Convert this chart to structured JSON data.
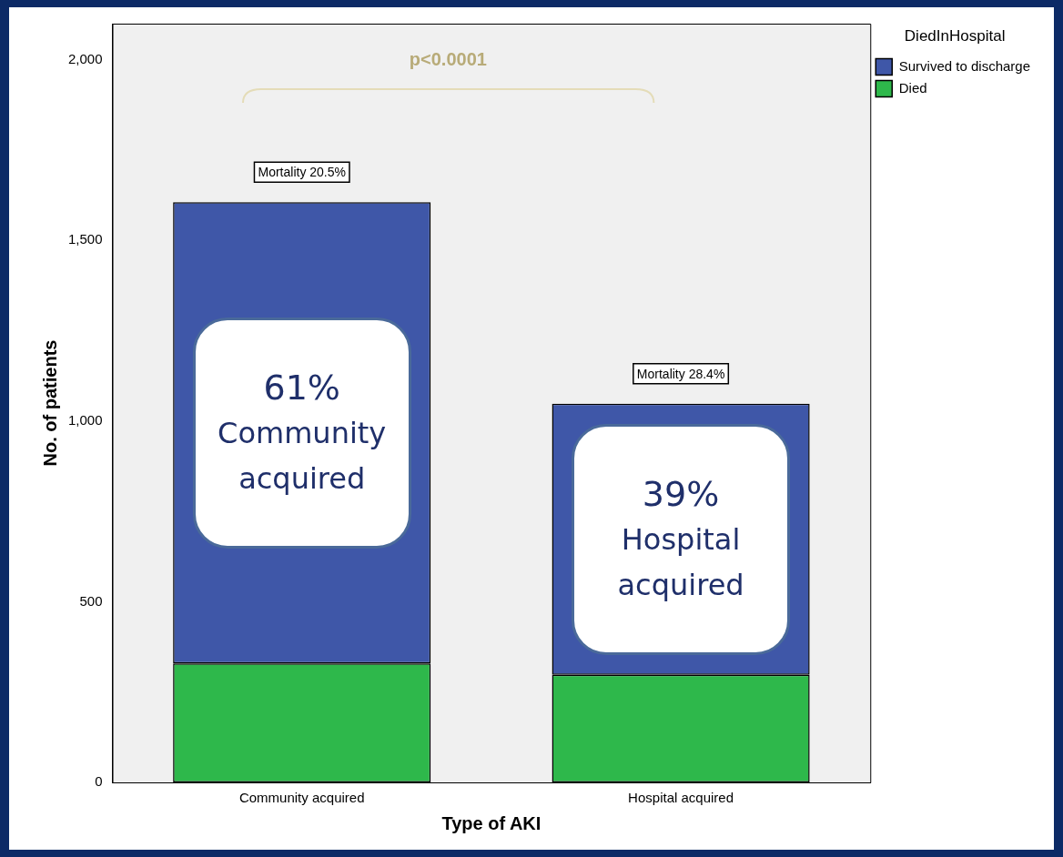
{
  "chart_data": {
    "type": "bar",
    "stacked": true,
    "xlabel": "Type of AKI",
    "ylabel": "No. of patients",
    "legend_title": "DiedInHospital",
    "legend": "top right",
    "grid": false,
    "categories": [
      "Community acquired",
      "Hospital acquired"
    ],
    "series": [
      {
        "name": "Died",
        "color": "#2eb84b",
        "values": [
          329,
          298
        ]
      },
      {
        "name": "Survived to discharge",
        "color": "#3f57a8",
        "values": [
          1277,
          750
        ]
      }
    ],
    "ylim": [
      0,
      2100
    ],
    "yticks": [
      0,
      500,
      {
        "value": 1000,
        "label": "1,000"
      },
      {
        "value": 1500,
        "label": "1,500"
      },
      {
        "value": 2000,
        "label": "2,000"
      }
    ],
    "annotations": [
      "p<0.0001",
      {
        "text": "Mortality 20.5%",
        "x": "Community acquired",
        "y": 1606
      },
      {
        "text": "Mortality 28.4%",
        "x": "Hospital acquired",
        "y": 1048
      },
      "61%\nCommunity\nacquired",
      "39%\nHospital\nacquired"
    ]
  }
}
